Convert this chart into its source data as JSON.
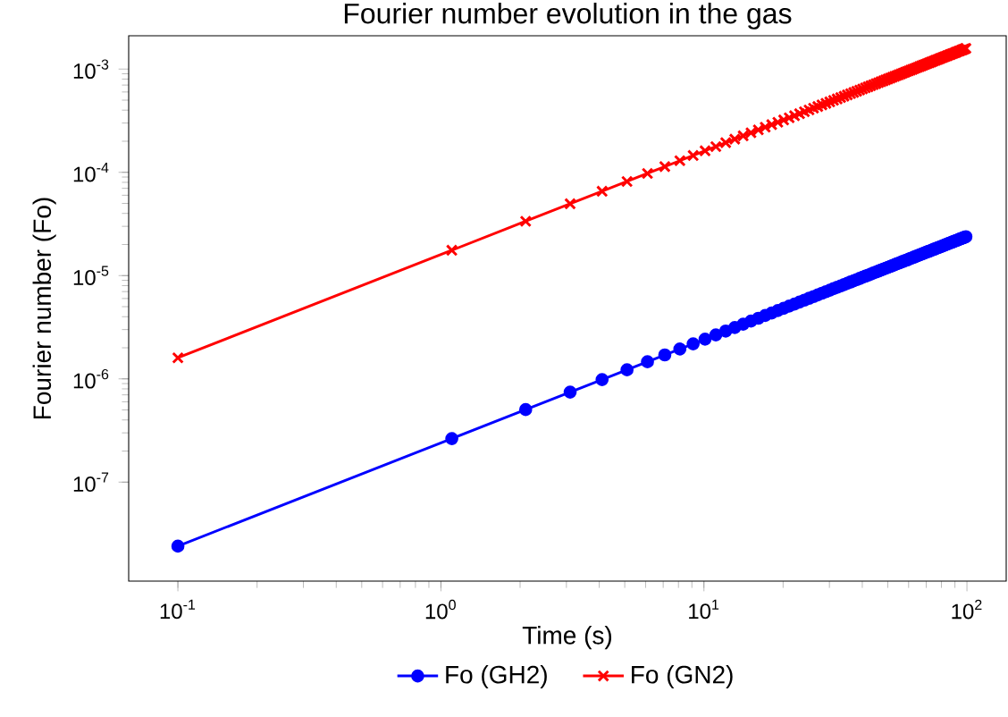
{
  "chart_data": {
    "type": "line",
    "title": "Fourier number evolution in the gas",
    "xlabel": "Time (s)",
    "ylabel": "Fourier number (Fo)",
    "log": "xy",
    "grid": false,
    "legend": "bottom",
    "xlim": [
      0.065,
      141
    ],
    "ylim": [
      1.1e-08,
      0.0021
    ],
    "xticks": [
      {
        "value": 0.1,
        "label": "10$^{-1}$"
      },
      {
        "value": 1,
        "label": "10$^{0}$"
      },
      {
        "value": 10,
        "label": "10$^{1}$"
      },
      {
        "value": 100,
        "label": "10$^{2}$"
      }
    ],
    "yticks": [
      {
        "value": 1e-07,
        "label": "10$^{-7}$"
      },
      {
        "value": 1e-06,
        "label": "10$^{-6}$"
      },
      {
        "value": 1e-05,
        "label": "10$^{-5}$"
      },
      {
        "value": 0.0001,
        "label": "10$^{-4}$"
      },
      {
        "value": 0.001,
        "label": "10$^{-3}$"
      }
    ],
    "x": [
      0.1,
      1.1,
      2.1,
      3.1,
      4.1,
      5.1,
      6.1,
      7.1,
      8.1,
      9.1,
      10.1,
      11.1,
      12.1,
      13.1,
      14.1,
      15.1,
      16.1,
      17.1,
      18.1,
      19.1,
      20.1,
      21.1,
      22.1,
      23.1,
      24.1,
      25.1,
      26.1,
      27.1,
      28.1,
      29.1,
      30.1,
      31.1,
      32.1,
      33.1,
      34.1,
      35.1,
      36.1,
      37.1,
      38.1,
      39.1,
      40.1,
      41.1,
      42.1,
      43.1,
      44.1,
      45.1,
      46.1,
      47.1,
      48.1,
      49.1,
      50.1,
      51.1,
      52.1,
      53.1,
      54.1,
      55.1,
      56.1,
      57.1,
      58.1,
      59.1,
      60.1,
      61.1,
      62.1,
      63.1,
      64.1,
      65.1,
      66.1,
      67.1,
      68.1,
      69.1,
      70.1,
      71.1,
      72.1,
      73.1,
      74.1,
      75.1,
      76.1,
      77.1,
      78.1,
      79.1,
      80.1,
      81.1,
      82.1,
      83.1,
      84.1,
      85.1,
      86.1,
      87.1,
      88.1,
      89.1,
      90.1,
      91.1,
      92.1,
      93.1,
      94.1,
      95.1,
      96.1,
      97.1,
      98.1,
      99.1
    ],
    "series": [
      {
        "name": "Fo (GH2)",
        "color": "#0000ff",
        "marker": "circle",
        "values": [
          2.4e-08,
          2.64e-07,
          5.04e-07,
          7.44e-07,
          9.84e-07,
          1.224e-06,
          1.464e-06,
          1.704e-06,
          1.944e-06,
          2.184e-06,
          2.424e-06,
          2.664e-06,
          2.904e-06,
          3.144e-06,
          3.384e-06,
          3.624e-06,
          3.864e-06,
          4.104e-06,
          4.344e-06,
          4.584e-06,
          4.824e-06,
          5.064e-06,
          5.304e-06,
          5.544e-06,
          5.784e-06,
          6.024e-06,
          6.264e-06,
          6.504e-06,
          6.744e-06,
          6.984e-06,
          7.224e-06,
          7.464e-06,
          7.704e-06,
          7.944e-06,
          8.184e-06,
          8.424e-06,
          8.664e-06,
          8.904e-06,
          9.144e-06,
          9.384e-06,
          9.624e-06,
          9.864e-06,
          1.0104e-05,
          1.0344e-05,
          1.0584e-05,
          1.0824e-05,
          1.1064e-05,
          1.1304e-05,
          1.1544e-05,
          1.1784e-05,
          1.2024e-05,
          1.2264e-05,
          1.2504e-05,
          1.2744e-05,
          1.2984e-05,
          1.3224e-05,
          1.3464e-05,
          1.3704e-05,
          1.3944e-05,
          1.4184e-05,
          1.4424e-05,
          1.4664e-05,
          1.4904e-05,
          1.5144e-05,
          1.5384e-05,
          1.5624e-05,
          1.5864e-05,
          1.6104e-05,
          1.6344e-05,
          1.6584e-05,
          1.6824e-05,
          1.7064e-05,
          1.7304e-05,
          1.7544e-05,
          1.7784e-05,
          1.8024e-05,
          1.8264e-05,
          1.8504e-05,
          1.8744e-05,
          1.8984e-05,
          1.9224e-05,
          1.9464e-05,
          1.9704e-05,
          1.9944e-05,
          2.0184e-05,
          2.0424e-05,
          2.0664e-05,
          2.0904e-05,
          2.1144e-05,
          2.1384e-05,
          2.1624e-05,
          2.1864e-05,
          2.2104e-05,
          2.2344e-05,
          2.2584e-05,
          2.2824e-05,
          2.3064e-05,
          2.3304e-05,
          2.3544e-05,
          2.3784e-05
        ]
      },
      {
        "name": "Fo (GN2)",
        "color": "#ff0000",
        "marker": "cross",
        "values": [
          1.6e-06,
          1.76e-05,
          3.36e-05,
          4.96e-05,
          6.56e-05,
          8.16e-05,
          9.76e-05,
          0.0001136,
          0.0001296,
          0.0001456,
          0.0001616,
          0.0001776,
          0.0001936,
          0.0002096,
          0.0002256,
          0.0002416,
          0.0002576,
          0.0002736,
          0.0002896,
          0.0003056,
          0.0003216,
          0.0003376,
          0.0003536,
          0.0003696,
          0.0003856,
          0.0004016,
          0.0004176,
          0.0004336,
          0.0004496,
          0.0004656,
          0.0004816,
          0.0004976,
          0.0005136,
          0.0005296,
          0.0005456,
          0.0005616,
          0.0005776,
          0.0005936,
          0.0006096,
          0.0006256,
          0.0006416,
          0.0006576,
          0.0006736,
          0.0006896,
          0.0007056,
          0.0007216,
          0.0007376,
          0.0007536,
          0.0007696,
          0.0007856,
          0.0008016,
          0.0008176,
          0.0008336,
          0.0008496,
          0.0008656,
          0.0008816,
          0.0008976,
          0.0009136,
          0.0009296,
          0.0009456,
          0.0009616,
          0.0009776,
          0.0009936,
          0.0010096,
          0.0010256,
          0.0010416,
          0.0010576,
          0.0010736,
          0.0010896,
          0.0011056,
          0.0011216,
          0.0011376,
          0.0011536,
          0.0011696,
          0.0011856,
          0.0012016,
          0.0012176,
          0.0012336,
          0.0012496,
          0.0012656,
          0.0012816,
          0.0012976,
          0.0013136,
          0.0013296,
          0.0013456,
          0.0013616,
          0.0013776,
          0.0013936,
          0.0014096,
          0.0014256,
          0.0014416,
          0.0014576,
          0.0014736,
          0.0014896,
          0.0015056,
          0.0015216,
          0.0015376,
          0.0015536,
          0.0015696,
          0.0015856
        ]
      }
    ]
  }
}
